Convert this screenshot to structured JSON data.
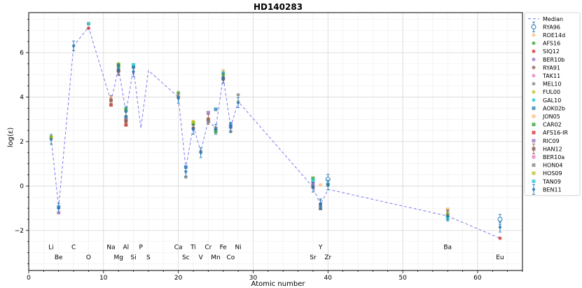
{
  "chart_data": {
    "type": "scatter",
    "title": "HD140283",
    "xlabel": "Atomic number",
    "ylabel": "log(ε)",
    "xlim": [
      0,
      66
    ],
    "ylim": [
      -3.8,
      7.8
    ],
    "xticks": [
      0,
      10,
      20,
      30,
      40,
      50,
      60
    ],
    "yticks": [
      -2,
      0,
      2,
      4,
      6
    ],
    "grid": true,
    "legend_position": "outside-right",
    "element_labels": [
      {
        "symbol": "Li",
        "z": 3,
        "row": 1
      },
      {
        "symbol": "Be",
        "z": 4,
        "row": 2
      },
      {
        "symbol": "C",
        "z": 6,
        "row": 1
      },
      {
        "symbol": "O",
        "z": 8,
        "row": 2
      },
      {
        "symbol": "Na",
        "z": 11,
        "row": 1
      },
      {
        "symbol": "Mg",
        "z": 12,
        "row": 2
      },
      {
        "symbol": "Al",
        "z": 13,
        "row": 1
      },
      {
        "symbol": "Si",
        "z": 14,
        "row": 2
      },
      {
        "symbol": "P",
        "z": 15,
        "row": 1
      },
      {
        "symbol": "S",
        "z": 16,
        "row": 2
      },
      {
        "symbol": "Ca",
        "z": 20,
        "row": 1
      },
      {
        "symbol": "Sc",
        "z": 21,
        "row": 2
      },
      {
        "symbol": "Ti",
        "z": 22,
        "row": 1
      },
      {
        "symbol": "V",
        "z": 23,
        "row": 2
      },
      {
        "symbol": "Cr",
        "z": 24,
        "row": 1
      },
      {
        "symbol": "Mn",
        "z": 25,
        "row": 2
      },
      {
        "symbol": "Fe",
        "z": 26,
        "row": 1
      },
      {
        "symbol": "Co",
        "z": 27,
        "row": 2
      },
      {
        "symbol": "Ni",
        "z": 28,
        "row": 1
      },
      {
        "symbol": "Sr",
        "z": 38,
        "row": 2
      },
      {
        "symbol": "Y",
        "z": 39,
        "row": 1
      },
      {
        "symbol": "Zr",
        "z": 40,
        "row": 2
      },
      {
        "symbol": "Ba",
        "z": 56,
        "row": 1
      },
      {
        "symbol": "Eu",
        "z": 63,
        "row": 2
      }
    ],
    "median": {
      "name": "Median",
      "color": "#7b7bf0",
      "x": [
        3,
        4,
        6,
        8,
        11,
        12,
        13,
        14,
        15,
        16,
        20,
        21,
        22,
        23,
        24,
        25,
        26,
        27,
        28,
        38,
        39,
        40,
        56,
        63
      ],
      "y": [
        2.15,
        -0.95,
        6.3,
        7.15,
        3.8,
        5.3,
        3.3,
        5.3,
        2.6,
        5.2,
        4.0,
        0.8,
        2.7,
        1.55,
        2.95,
        2.6,
        4.9,
        2.65,
        3.8,
        -0.05,
        -0.85,
        -0.15,
        -1.35,
        -2.35
      ]
    },
    "series": [
      {
        "name": "RYA96",
        "color": "#1f77b4",
        "marker": "circle-open-err",
        "x": [
          40,
          63
        ],
        "y": [
          0.3,
          -1.5
        ]
      },
      {
        "name": "ROE14d",
        "color": "#ffbb78",
        "marker": "circle",
        "x": [
          3,
          11,
          12,
          13,
          14,
          20,
          22,
          24,
          26,
          28,
          38,
          39,
          56
        ],
        "y": [
          2.15,
          3.95,
          5.4,
          3.35,
          5.35,
          4.1,
          2.75,
          3.0,
          5.2,
          3.8,
          0.15,
          0.05,
          -1.05
        ]
      },
      {
        "name": "AFS16",
        "color": "#2ca02c",
        "marker": "circle",
        "x": [
          3,
          12,
          20,
          22,
          26
        ],
        "y": [
          2.2,
          5.35,
          4.2,
          2.8,
          5.0
        ]
      },
      {
        "name": "SIQ12",
        "color": "#d62728",
        "marker": "circle",
        "x": [
          8,
          12,
          63
        ],
        "y": [
          7.1,
          5.15,
          -2.35
        ]
      },
      {
        "name": "BER10b",
        "color": "#9467bd",
        "marker": "circle",
        "x": [
          22
        ],
        "y": [
          2.6
        ]
      },
      {
        "name": "RYA91",
        "color": "#8c564b",
        "marker": "circle",
        "x": [
          12,
          13,
          20,
          22,
          26
        ],
        "y": [
          5.2,
          2.9,
          4.0,
          2.6,
          4.8
        ]
      },
      {
        "name": "TAK11",
        "color": "#e377c2",
        "marker": "circle",
        "x": [
          26
        ],
        "y": [
          4.85
        ]
      },
      {
        "name": "MEL10",
        "color": "#7f7f7f",
        "marker": "circle",
        "x": [
          21,
          23,
          27,
          28
        ],
        "y": [
          0.4,
          1.55,
          2.45,
          4.1
        ]
      },
      {
        "name": "FUL00",
        "color": "#bcbd22",
        "marker": "circle",
        "x": [
          3,
          12,
          20,
          22,
          26
        ],
        "y": [
          2.2,
          5.5,
          4.15,
          2.9,
          5.05
        ]
      },
      {
        "name": "GAL10",
        "color": "#17becf",
        "marker": "circle",
        "x": [
          26,
          40
        ],
        "y": [
          5.1,
          0.1
        ]
      },
      {
        "name": "AOK02b",
        "color": "#1f77b4",
        "marker": "square",
        "x": [
          4,
          13,
          14,
          21,
          25,
          27,
          39
        ],
        "y": [
          -0.95,
          3.1,
          5.35,
          0.85,
          3.45,
          2.75,
          -1.0
        ]
      },
      {
        "name": "JON05",
        "color": "#ffbb78",
        "marker": "square",
        "x": [
          8,
          56
        ],
        "y": [
          7.3,
          -1.05
        ]
      },
      {
        "name": "CAR02",
        "color": "#2ca02c",
        "marker": "square",
        "x": [
          12,
          13,
          22,
          25,
          38
        ],
        "y": [
          5.45,
          3.45,
          2.8,
          2.45,
          0.35
        ]
      },
      {
        "name": "AFS16-IR",
        "color": "#d62728",
        "marker": "square",
        "x": [
          11,
          13
        ],
        "y": [
          3.65,
          2.75
        ]
      },
      {
        "name": "RIC09",
        "color": "#9467bd",
        "marker": "square",
        "x": [
          24,
          27,
          38
        ],
        "y": [
          3.3,
          2.65,
          0.1
        ]
      },
      {
        "name": "HAN12",
        "color": "#8c564b",
        "marker": "square-err",
        "x": [
          11,
          12,
          13,
          24,
          26,
          38,
          39,
          56
        ],
        "y": [
          3.85,
          5.2,
          2.95,
          3.0,
          4.85,
          -0.05,
          -0.85,
          -1.3
        ]
      },
      {
        "name": "BER10a",
        "color": "#e377c2",
        "marker": "square",
        "x": [
          4
        ],
        "y": [
          -1.2
        ]
      },
      {
        "name": "HON04",
        "color": "#7f7f7f",
        "marker": "square",
        "x": [
          24,
          25,
          40
        ],
        "y": [
          2.9,
          2.6,
          0.05
        ]
      },
      {
        "name": "HOS09",
        "color": "#bcbd22",
        "marker": "square",
        "x": [
          3,
          22,
          56
        ],
        "y": [
          2.2,
          2.85,
          -1.25
        ]
      },
      {
        "name": "TAN09",
        "color": "#17becf",
        "marker": "square",
        "x": [
          8,
          14,
          38,
          56
        ],
        "y": [
          7.3,
          5.45,
          0.25,
          -1.45
        ]
      },
      {
        "name": "BEN11",
        "color": "#1f77b4",
        "marker": "diamond-err",
        "x": [
          3,
          4,
          6,
          12,
          13,
          14,
          20,
          21,
          22,
          23,
          25,
          26,
          27,
          28,
          38,
          39,
          40,
          56,
          63
        ],
        "y": [
          2.1,
          -1.0,
          6.3,
          5.25,
          3.35,
          5.15,
          3.95,
          0.65,
          2.55,
          1.5,
          2.55,
          4.85,
          2.65,
          3.75,
          -0.05,
          -0.8,
          0.05,
          -1.35,
          -1.85
        ]
      }
    ]
  }
}
